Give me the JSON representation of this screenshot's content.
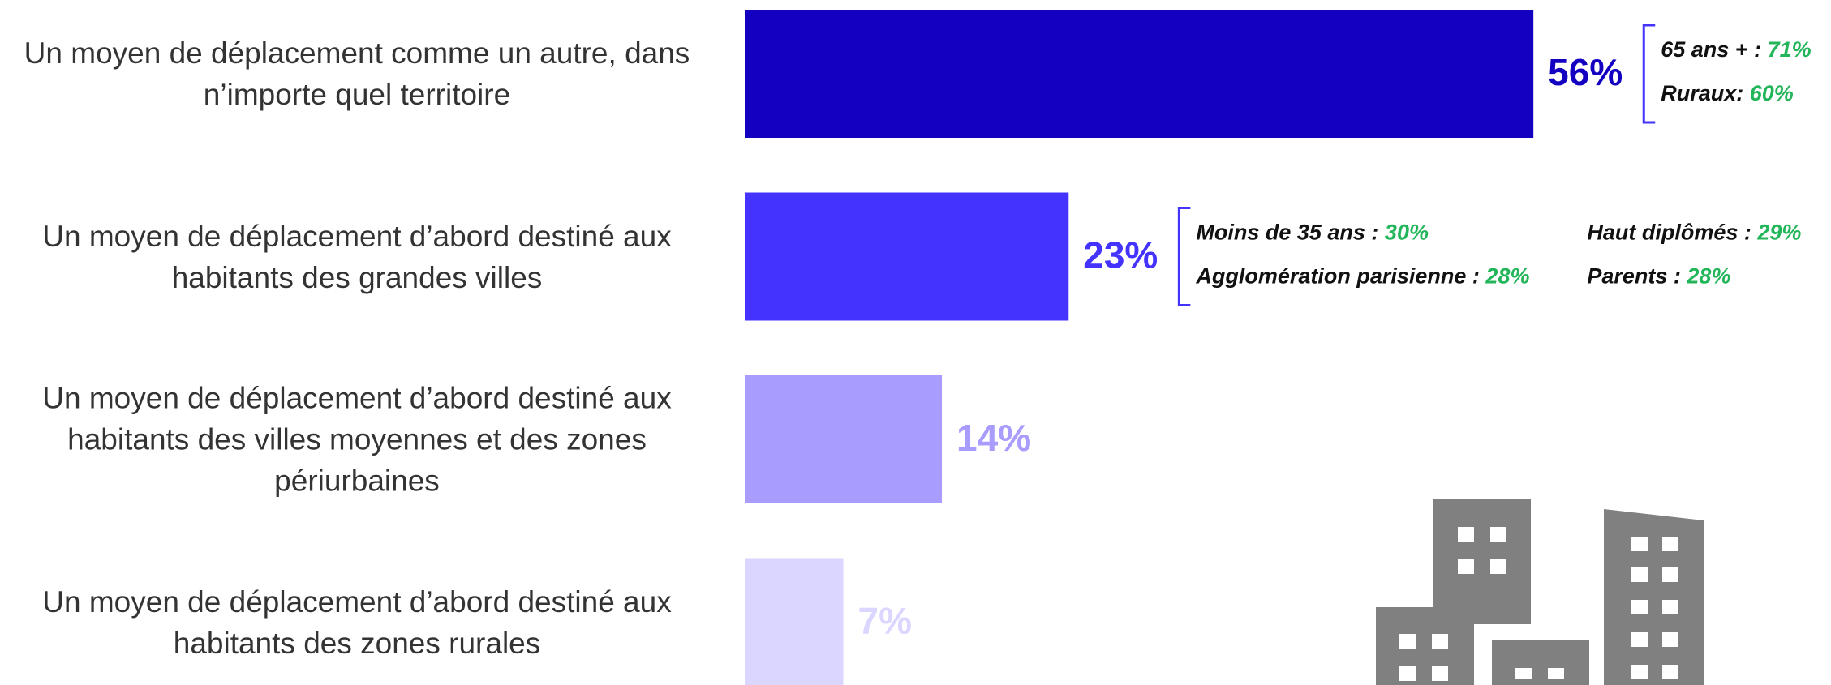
{
  "chart_data": {
    "type": "bar",
    "orientation": "horizontal",
    "categories": [
      "Un moyen de déplacement comme un autre, dans n’importe quel territoire",
      "Un moyen de déplacement d’abord destiné aux habitants des grandes villes",
      "Un moyen de déplacement d’abord destiné aux habitants des villes moyennes et des zones périurbaines",
      "Un moyen de déplacement d’abord destiné aux habitants des zones rurales"
    ],
    "values": [
      56,
      23,
      14,
      7
    ],
    "value_labels": [
      "56%",
      "23%",
      "14%",
      "7%"
    ],
    "colors": [
      "#1400c0",
      "#4433ff",
      "#a89cff",
      "#dad6ff"
    ],
    "annotations": [
      [
        {
          "label": "65 ans + :",
          "value": "71%"
        },
        {
          "label": "Ruraux:",
          "value": "60%"
        }
      ],
      [
        {
          "label": "Moins de 35 ans :",
          "value": "30%"
        },
        {
          "label": "Agglomération parisienne :",
          "value": "28%"
        },
        {
          "label": "Haut diplômés :",
          "value": "29%"
        },
        {
          "label": "Parents :",
          "value": "28%"
        }
      ],
      [],
      []
    ]
  }
}
